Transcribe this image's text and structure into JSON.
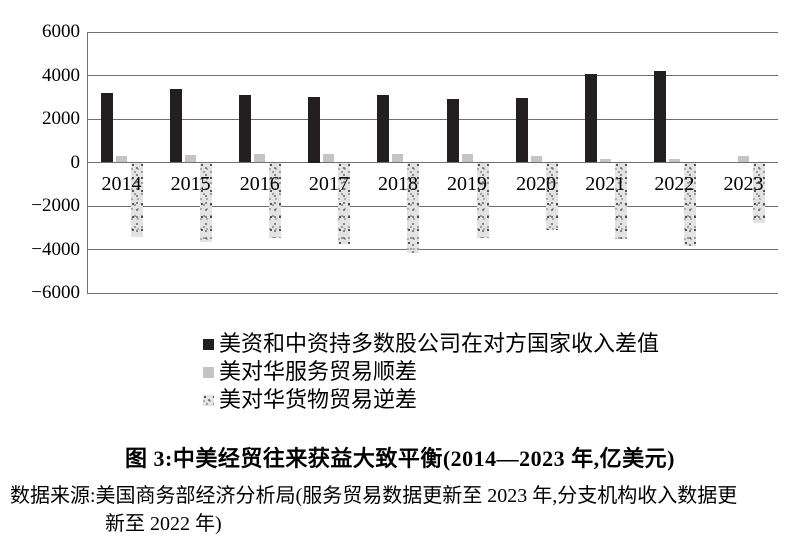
{
  "figure": {
    "title": "图 3:中美经贸往来获益大致平衡(2014—2023 年,亿美元)",
    "source_line1": "数据来源:美国商务部经济分析局(服务贸易数据更新至 2023 年,分支机构收入数据更",
    "source_line2": "新至 2022 年)"
  },
  "chart_data": {
    "type": "bar",
    "categories": [
      "2014",
      "2015",
      "2016",
      "2017",
      "2018",
      "2019",
      "2020",
      "2021",
      "2022",
      "2023"
    ],
    "series": [
      {
        "name": "美资和中资持多数股公司在对方国家收入差值",
        "fill": "solid-black",
        "color": "#231f20",
        "values": [
          3200,
          3400,
          3100,
          3000,
          3100,
          2900,
          2950,
          4080,
          4200,
          null
        ]
      },
      {
        "name": "美对华服务贸易顺差",
        "fill": "solid-gray",
        "color": "#c4c4c4",
        "values": [
          320,
          350,
          400,
          410,
          410,
          390,
          280,
          180,
          140,
          300
        ]
      },
      {
        "name": "美对华货物贸易逆差",
        "fill": "speckled",
        "color": "#e3e3e3",
        "values": [
          -3440,
          -3670,
          -3470,
          -3750,
          -4180,
          -3450,
          -3100,
          -3530,
          -3820,
          -2790
        ]
      }
    ],
    "ylim": [
      -6000,
      6000
    ],
    "ytick_step": 2000,
    "ytick_labels": [
      "6000",
      "4000",
      "2000",
      "0",
      "−2000",
      "−4000",
      "−6000"
    ],
    "grid": true,
    "legend_position": "below-left"
  },
  "colors": {
    "gridline": "#6f6f6f",
    "bar_black": "#231f20",
    "bar_gray": "#c4c4c4",
    "bar_speckle_base": "#e3e3e3",
    "text": "#000000",
    "background": "#ffffff"
  }
}
